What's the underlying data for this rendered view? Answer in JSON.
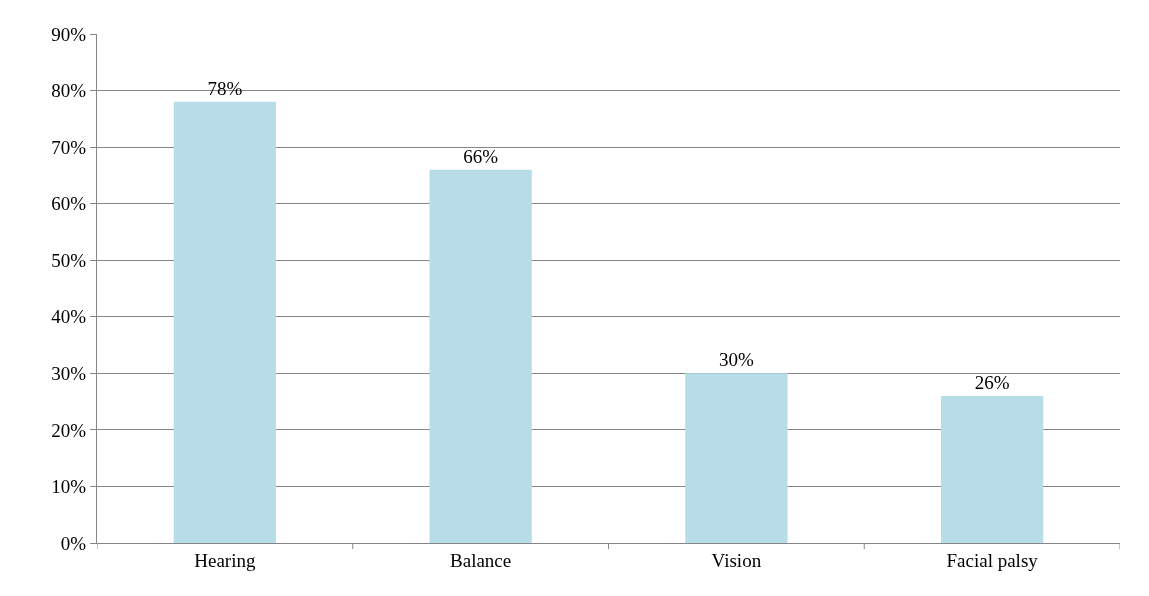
{
  "chart_data": {
    "type": "bar",
    "categories": [
      "Hearing",
      "Balance",
      "Vision",
      "Facial palsy"
    ],
    "values": [
      78,
      66,
      30,
      26
    ],
    "value_labels": [
      "78%",
      "66%",
      "30%",
      "26%"
    ],
    "color": "#b7dde8",
    "ylim": [
      0,
      90
    ],
    "yticks": [
      {
        "value": 0,
        "label": "0%"
      },
      {
        "value": 10,
        "label": "10%"
      },
      {
        "value": 20,
        "label": "20%"
      },
      {
        "value": 30,
        "label": "30%"
      },
      {
        "value": 40,
        "label": "40%"
      },
      {
        "value": 50,
        "label": "50%"
      },
      {
        "value": 60,
        "label": "60%"
      },
      {
        "value": 70,
        "label": "70%"
      },
      {
        "value": 80,
        "label": "80%"
      },
      {
        "value": 90,
        "label": "90%"
      }
    ],
    "grid": "y",
    "legend": false
  }
}
